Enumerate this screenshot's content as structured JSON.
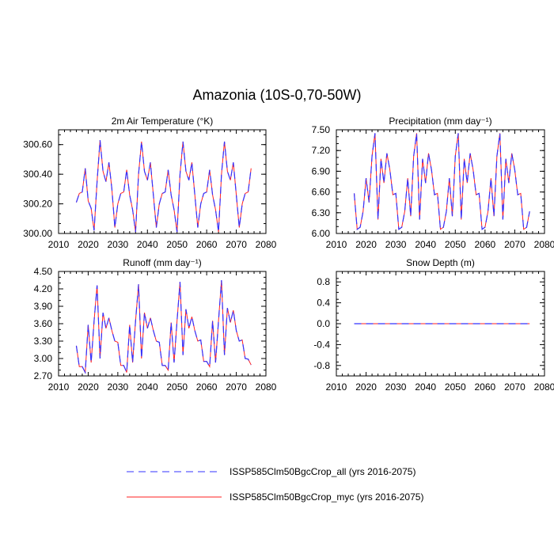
{
  "page": {
    "title": "Amazonia (10S-0,70-50W)"
  },
  "legend": {
    "entries": [
      {
        "name": "ISSP585Clm50BgcCrop_all (yrs 2016-2075)",
        "style": "dashed",
        "color": "#3333ff"
      },
      {
        "name": "ISSP585Clm50BgcCrop_myc (yrs 2016-2075)",
        "style": "solid",
        "color": "#ff2222"
      }
    ]
  },
  "chart_data": [
    {
      "type": "line",
      "title": "2m Air Temperature (°K)",
      "xlim": [
        2010,
        2080
      ],
      "ylim": [
        300.0,
        300.7
      ],
      "xticks": [
        2010,
        2020,
        2030,
        2040,
        2050,
        2060,
        2070,
        2080
      ],
      "yticks": [
        300.0,
        300.2,
        300.4,
        300.6
      ],
      "ytick_labels": [
        "300.00",
        "300.20",
        "300.40",
        "300.60"
      ],
      "x": [
        2016,
        2017,
        2018,
        2019,
        2020,
        2021,
        2022,
        2023,
        2024,
        2025,
        2026,
        2027,
        2028,
        2029,
        2030,
        2031,
        2032,
        2033,
        2034,
        2035,
        2036,
        2037,
        2038,
        2039,
        2040,
        2041,
        2042,
        2043,
        2044,
        2045,
        2046,
        2047,
        2048,
        2049,
        2050,
        2051,
        2052,
        2053,
        2054,
        2055,
        2056,
        2057,
        2058,
        2059,
        2060,
        2061,
        2062,
        2063,
        2064,
        2065,
        2066,
        2067,
        2068,
        2069,
        2070,
        2071,
        2072,
        2073,
        2074,
        2075
      ],
      "series": [
        {
          "values": [
            300.21,
            300.27,
            300.28,
            300.44,
            300.22,
            300.17,
            300.02,
            300.35,
            300.63,
            300.42,
            300.35,
            300.48,
            300.3,
            300.04,
            300.2,
            300.27,
            300.28,
            300.43,
            300.26,
            300.16,
            300.01,
            300.4,
            300.62,
            300.42,
            300.36,
            300.48,
            300.26,
            300.04,
            300.2,
            300.27,
            300.28,
            300.43,
            300.26,
            300.16,
            300.01,
            300.4,
            300.62,
            300.42,
            300.36,
            300.48,
            300.26,
            300.04,
            300.2,
            300.27,
            300.28,
            300.43,
            300.26,
            300.16,
            300.01,
            300.4,
            300.62,
            300.42,
            300.36,
            300.48,
            300.26,
            300.04,
            300.2,
            300.27,
            300.28,
            300.44
          ]
        },
        {
          "values": [
            300.21,
            300.27,
            300.28,
            300.44,
            300.22,
            300.17,
            300.02,
            300.35,
            300.63,
            300.42,
            300.35,
            300.48,
            300.3,
            300.04,
            300.2,
            300.27,
            300.28,
            300.43,
            300.26,
            300.16,
            300.01,
            300.4,
            300.62,
            300.42,
            300.36,
            300.48,
            300.26,
            300.04,
            300.2,
            300.27,
            300.28,
            300.43,
            300.26,
            300.16,
            300.01,
            300.4,
            300.62,
            300.42,
            300.36,
            300.48,
            300.26,
            300.04,
            300.2,
            300.27,
            300.28,
            300.43,
            300.26,
            300.16,
            300.01,
            300.4,
            300.62,
            300.42,
            300.36,
            300.48,
            300.26,
            300.04,
            300.2,
            300.27,
            300.28,
            300.44
          ]
        }
      ]
    },
    {
      "type": "line",
      "title": "Precipitation (mm day⁻¹)",
      "xlim": [
        2010,
        2080
      ],
      "ylim": [
        6.0,
        7.5
      ],
      "xticks": [
        2010,
        2020,
        2030,
        2040,
        2050,
        2060,
        2070,
        2080
      ],
      "yticks": [
        6.0,
        6.3,
        6.6,
        6.9,
        7.2,
        7.5
      ],
      "ytick_labels": [
        "6.00",
        "6.30",
        "6.60",
        "6.90",
        "7.20",
        "7.50"
      ],
      "x": [
        2016,
        2017,
        2018,
        2019,
        2020,
        2021,
        2022,
        2023,
        2024,
        2025,
        2026,
        2027,
        2028,
        2029,
        2030,
        2031,
        2032,
        2033,
        2034,
        2035,
        2036,
        2037,
        2038,
        2039,
        2040,
        2041,
        2042,
        2043,
        2044,
        2045,
        2046,
        2047,
        2048,
        2049,
        2050,
        2051,
        2052,
        2053,
        2054,
        2055,
        2056,
        2057,
        2058,
        2059,
        2060,
        2061,
        2062,
        2063,
        2064,
        2065,
        2066,
        2067,
        2068,
        2069,
        2070,
        2071,
        2072,
        2073,
        2074,
        2075
      ],
      "series": [
        {
          "values": [
            6.58,
            6.06,
            6.09,
            6.32,
            6.8,
            6.45,
            7.12,
            7.45,
            6.2,
            7.08,
            6.73,
            7.16,
            6.92,
            6.56,
            6.58,
            6.06,
            6.09,
            6.32,
            6.8,
            6.25,
            7.12,
            7.45,
            6.2,
            7.08,
            6.73,
            7.16,
            6.92,
            6.56,
            6.58,
            6.06,
            6.09,
            6.32,
            6.8,
            6.25,
            7.12,
            7.45,
            6.2,
            7.08,
            6.73,
            7.16,
            6.92,
            6.56,
            6.58,
            6.06,
            6.09,
            6.32,
            6.8,
            6.25,
            7.12,
            7.45,
            6.2,
            7.08,
            6.73,
            7.16,
            6.92,
            6.56,
            6.58,
            6.06,
            6.09,
            6.32
          ]
        },
        {
          "values": [
            6.58,
            6.06,
            6.09,
            6.32,
            6.8,
            6.45,
            7.12,
            7.45,
            6.2,
            7.08,
            6.73,
            7.16,
            6.92,
            6.56,
            6.58,
            6.06,
            6.09,
            6.32,
            6.8,
            6.25,
            7.12,
            7.45,
            6.2,
            7.08,
            6.73,
            7.16,
            6.92,
            6.56,
            6.58,
            6.06,
            6.09,
            6.32,
            6.8,
            6.25,
            7.12,
            7.45,
            6.2,
            7.08,
            6.73,
            7.16,
            6.92,
            6.56,
            6.58,
            6.06,
            6.09,
            6.32,
            6.8,
            6.25,
            7.12,
            7.45,
            6.2,
            7.08,
            6.73,
            7.16,
            6.92,
            6.56,
            6.58,
            6.06,
            6.09,
            6.32
          ]
        }
      ]
    },
    {
      "type": "line",
      "title": "Runoff (mm day⁻¹)",
      "xlim": [
        2010,
        2080
      ],
      "ylim": [
        2.7,
        4.5
      ],
      "xticks": [
        2010,
        2020,
        2030,
        2040,
        2050,
        2060,
        2070,
        2080
      ],
      "yticks": [
        2.7,
        3.0,
        3.3,
        3.6,
        3.9,
        4.2,
        4.5
      ],
      "ytick_labels": [
        "2.70",
        "3.00",
        "3.30",
        "3.60",
        "3.90",
        "4.20",
        "4.50"
      ],
      "x": [
        2016,
        2017,
        2018,
        2019,
        2020,
        2021,
        2022,
        2023,
        2024,
        2025,
        2026,
        2027,
        2028,
        2029,
        2030,
        2031,
        2032,
        2033,
        2034,
        2035,
        2036,
        2037,
        2038,
        2039,
        2040,
        2041,
        2042,
        2043,
        2044,
        2045,
        2046,
        2047,
        2048,
        2049,
        2050,
        2051,
        2052,
        2053,
        2054,
        2055,
        2056,
        2057,
        2058,
        2059,
        2060,
        2061,
        2062,
        2063,
        2064,
        2065,
        2066,
        2067,
        2068,
        2069,
        2070,
        2071,
        2072,
        2073,
        2074,
        2075
      ],
      "series": [
        {
          "values": [
            3.22,
            2.86,
            2.86,
            2.76,
            3.58,
            2.93,
            3.65,
            4.26,
            3.0,
            3.79,
            3.52,
            3.7,
            3.48,
            3.3,
            3.28,
            2.88,
            2.88,
            2.76,
            3.58,
            2.93,
            3.65,
            4.28,
            3.0,
            3.79,
            3.52,
            3.7,
            3.48,
            3.3,
            3.28,
            2.88,
            2.88,
            2.8,
            3.62,
            2.93,
            3.65,
            4.32,
            3.06,
            3.85,
            3.52,
            3.72,
            3.48,
            3.3,
            3.32,
            2.95,
            2.95,
            2.86,
            3.65,
            2.93,
            3.65,
            4.35,
            3.06,
            3.87,
            3.62,
            3.83,
            3.48,
            3.3,
            3.32,
            3.0,
            2.99,
            2.89
          ]
        },
        {
          "values": [
            3.22,
            2.86,
            2.86,
            2.76,
            3.58,
            2.93,
            3.65,
            4.26,
            3.0,
            3.79,
            3.52,
            3.7,
            3.48,
            3.3,
            3.28,
            2.88,
            2.88,
            2.76,
            3.58,
            2.93,
            3.65,
            4.28,
            3.0,
            3.79,
            3.52,
            3.7,
            3.48,
            3.3,
            3.28,
            2.88,
            2.88,
            2.8,
            3.62,
            2.93,
            3.65,
            4.32,
            3.06,
            3.85,
            3.52,
            3.72,
            3.48,
            3.3,
            3.32,
            2.95,
            2.95,
            2.86,
            3.65,
            2.93,
            3.65,
            4.35,
            3.06,
            3.87,
            3.62,
            3.83,
            3.48,
            3.3,
            3.32,
            3.0,
            2.99,
            2.89
          ]
        }
      ]
    },
    {
      "type": "line",
      "title": "Snow Depth (m)",
      "xlim": [
        2010,
        2080
      ],
      "ylim": [
        -1.0,
        1.0
      ],
      "xticks": [
        2010,
        2020,
        2030,
        2040,
        2050,
        2060,
        2070,
        2080
      ],
      "yticks": [
        -0.8,
        -0.4,
        0.0,
        0.4,
        0.8
      ],
      "ytick_labels": [
        "-0.8",
        "-0.4",
        "0.0",
        "0.4",
        "0.8"
      ],
      "x": [
        2016,
        2017,
        2018,
        2019,
        2020,
        2021,
        2022,
        2023,
        2024,
        2025,
        2026,
        2027,
        2028,
        2029,
        2030,
        2031,
        2032,
        2033,
        2034,
        2035,
        2036,
        2037,
        2038,
        2039,
        2040,
        2041,
        2042,
        2043,
        2044,
        2045,
        2046,
        2047,
        2048,
        2049,
        2050,
        2051,
        2052,
        2053,
        2054,
        2055,
        2056,
        2057,
        2058,
        2059,
        2060,
        2061,
        2062,
        2063,
        2064,
        2065,
        2066,
        2067,
        2068,
        2069,
        2070,
        2071,
        2072,
        2073,
        2074,
        2075
      ],
      "series": [
        {
          "values": [
            0,
            0,
            0,
            0,
            0,
            0,
            0,
            0,
            0,
            0,
            0,
            0,
            0,
            0,
            0,
            0,
            0,
            0,
            0,
            0,
            0,
            0,
            0,
            0,
            0,
            0,
            0,
            0,
            0,
            0,
            0,
            0,
            0,
            0,
            0,
            0,
            0,
            0,
            0,
            0,
            0,
            0,
            0,
            0,
            0,
            0,
            0,
            0,
            0,
            0,
            0,
            0,
            0,
            0,
            0,
            0,
            0,
            0,
            0,
            0
          ]
        },
        {
          "values": [
            0,
            0,
            0,
            0,
            0,
            0,
            0,
            0,
            0,
            0,
            0,
            0,
            0,
            0,
            0,
            0,
            0,
            0,
            0,
            0,
            0,
            0,
            0,
            0,
            0,
            0,
            0,
            0,
            0,
            0,
            0,
            0,
            0,
            0,
            0,
            0,
            0,
            0,
            0,
            0,
            0,
            0,
            0,
            0,
            0,
            0,
            0,
            0,
            0,
            0,
            0,
            0,
            0,
            0,
            0,
            0,
            0,
            0,
            0,
            0
          ]
        }
      ]
    }
  ]
}
